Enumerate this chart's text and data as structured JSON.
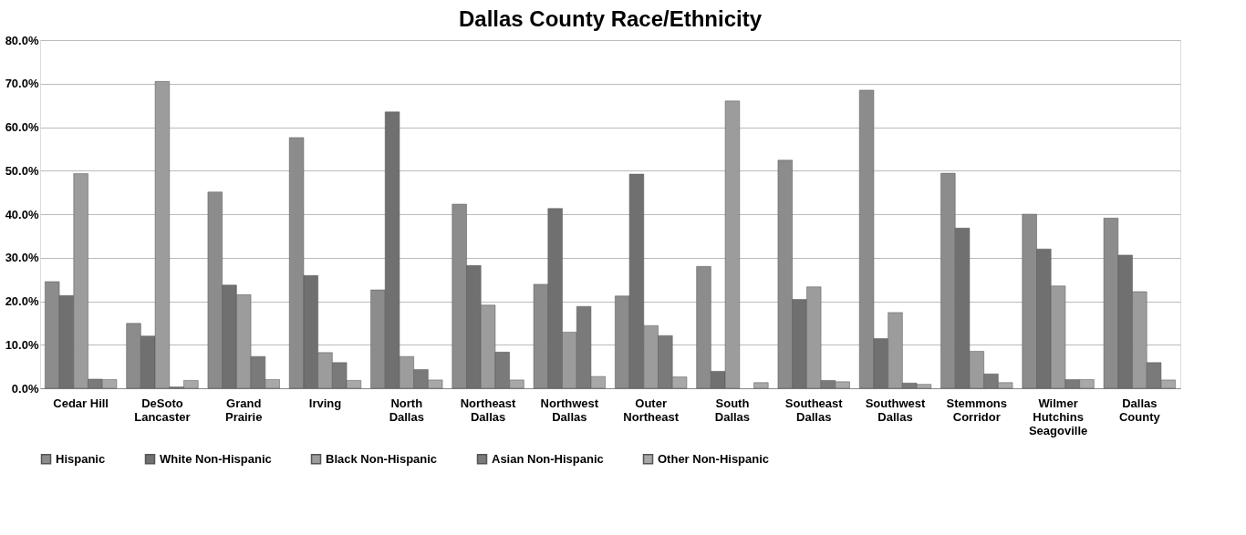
{
  "chart_data": {
    "type": "bar",
    "title": "Dallas County Race/Ethnicity",
    "categories": [
      "Cedar Hill",
      "DeSoto\nLancaster",
      "Grand\nPrairie",
      "Irving",
      "North\nDallas",
      "Northeast\nDallas",
      "Northwest\nDallas",
      "Outer\nNortheast",
      "South\nDallas",
      "Southeast\nDallas",
      "Southwest\nDallas",
      "Stemmons\nCorridor",
      "Wilmer\nHutchins\nSeagoville",
      "Dallas\nCounty"
    ],
    "series": [
      {
        "name": "Hispanic",
        "color": "#8c8c8c",
        "values": [
          24.5,
          14.9,
          45.1,
          57.6,
          22.6,
          42.3,
          23.9,
          21.2,
          28.0,
          52.4,
          68.5,
          49.4,
          40.0,
          39.1
        ]
      },
      {
        "name": "White Non-Hispanic",
        "color": "#707070",
        "values": [
          21.3,
          12.0,
          23.7,
          25.9,
          63.5,
          28.2,
          41.3,
          49.2,
          3.9,
          20.4,
          11.4,
          36.8,
          32.0,
          30.6
        ]
      },
      {
        "name": "Black Non-Hispanic",
        "color": "#9c9c9c",
        "values": [
          49.3,
          70.5,
          21.5,
          8.2,
          7.3,
          19.1,
          12.9,
          14.4,
          66.0,
          23.3,
          17.4,
          8.5,
          23.5,
          22.2
        ]
      },
      {
        "name": "Asian Non-Hispanic",
        "color": "#7a7a7a",
        "values": [
          2.1,
          0.3,
          7.3,
          5.9,
          4.3,
          8.3,
          18.8,
          12.1,
          null,
          1.8,
          1.2,
          3.3,
          2.0,
          5.9
        ]
      },
      {
        "name": "Other Non-Hispanic",
        "color": "#a8a8a8",
        "values": [
          2.0,
          1.8,
          2.0,
          1.8,
          1.9,
          1.9,
          2.7,
          2.6,
          1.3,
          1.5,
          0.9,
          1.3,
          2.0,
          1.9
        ]
      }
    ],
    "ylim": [
      0,
      80
    ],
    "yticks": [
      {
        "value": 0,
        "label": "0.0%"
      },
      {
        "value": 10,
        "label": "10.0%"
      },
      {
        "value": 20,
        "label": "20.0%"
      },
      {
        "value": 30,
        "label": "30.0%"
      },
      {
        "value": 40,
        "label": "40.0%"
      },
      {
        "value": 50,
        "label": "50.0%"
      },
      {
        "value": 60,
        "label": "60.0%"
      },
      {
        "value": 70,
        "label": "70.0%"
      },
      {
        "value": 80,
        "label": "80.0%"
      }
    ],
    "grid": "y",
    "legend": "bottom"
  }
}
